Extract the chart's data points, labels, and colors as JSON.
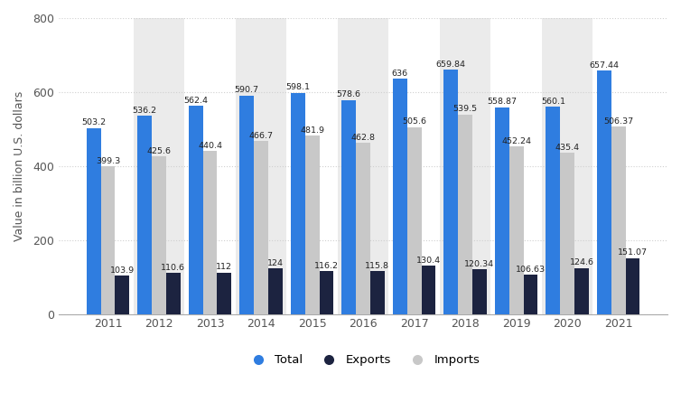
{
  "years": [
    2011,
    2012,
    2013,
    2014,
    2015,
    2016,
    2017,
    2018,
    2019,
    2020,
    2021
  ],
  "total": [
    503.2,
    536.2,
    562.4,
    590.7,
    598.1,
    578.6,
    636.0,
    659.84,
    558.87,
    560.1,
    657.44
  ],
  "exports": [
    103.9,
    110.6,
    112.0,
    124.0,
    116.2,
    115.8,
    130.4,
    120.34,
    106.63,
    124.6,
    151.07
  ],
  "imports": [
    399.3,
    425.6,
    440.4,
    466.7,
    481.9,
    462.8,
    505.6,
    539.5,
    452.24,
    435.4,
    506.37
  ],
  "total_labels": [
    "503.2",
    "536.2",
    "562.4",
    "590.7",
    "598.1",
    "578.6",
    "636",
    "659.84",
    "558.87",
    "560.1",
    "657.44"
  ],
  "exports_labels": [
    "103.9",
    "110.6",
    "112",
    "124",
    "116.2",
    "115.8",
    "130.4",
    "120.34",
    "106.63",
    "124.6",
    "151.07"
  ],
  "imports_labels": [
    "399.3",
    "425.6",
    "440.4",
    "466.7",
    "481.9",
    "462.8",
    "505.6",
    "539.5",
    "452.24",
    "435.4",
    "506.37"
  ],
  "color_total": "#2f7de0",
  "color_exports": "#1c2340",
  "color_imports": "#c8c8c8",
  "ylabel": "Value in billion U.S. dollars",
  "ylim": [
    0,
    800
  ],
  "yticks": [
    0,
    200,
    400,
    600,
    800
  ],
  "background_color": "#ffffff",
  "shaded_years": [
    2012,
    2014,
    2016,
    2018,
    2020
  ],
  "legend_labels": [
    "Total",
    "Exports",
    "Imports"
  ],
  "bar_width": 0.28,
  "shade_color": "#ebebeb",
  "grid_color": "#d0d0d0",
  "label_fontsize": 6.8,
  "tick_fontsize": 9,
  "ylabel_fontsize": 9
}
